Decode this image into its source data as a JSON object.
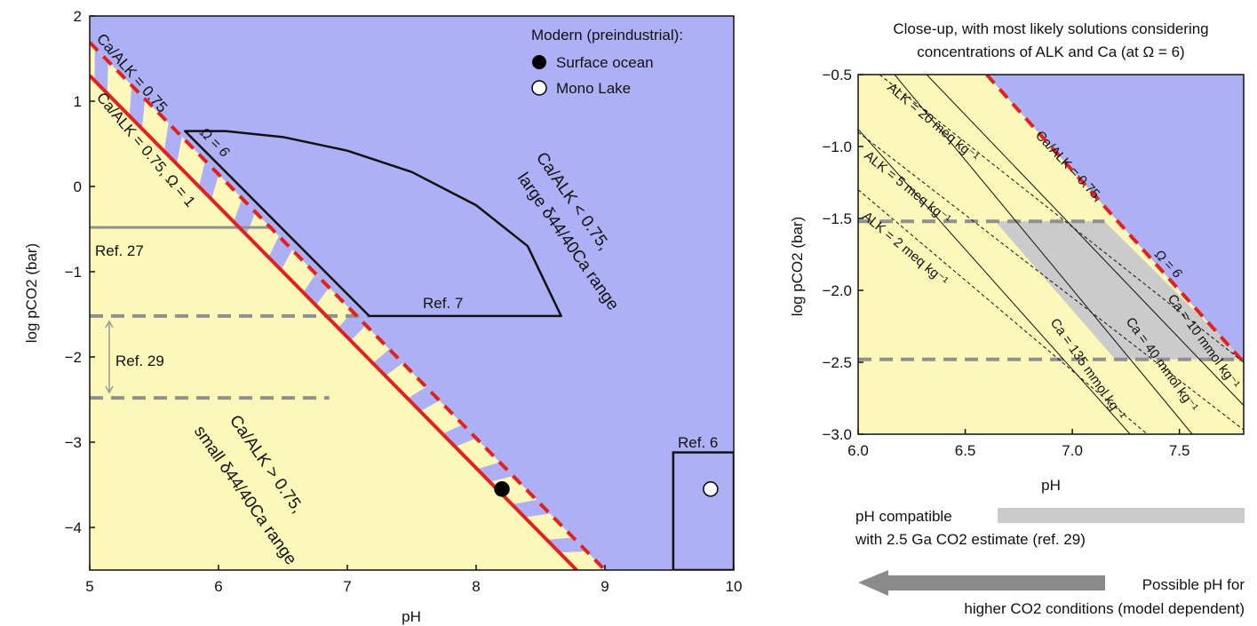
{
  "colors": {
    "supersaturated": "#aeb0f5",
    "undersaturated": "#fbf8b9",
    "omega_line": "#e4201f",
    "gray_band": "#cbcbcb",
    "dashed_gray": "#909090",
    "axis": "#111111"
  },
  "chart_data": [
    {
      "type": "area",
      "xlabel": "pH",
      "ylabel": "log pCO2 (bar)",
      "xlim": [
        5,
        10
      ],
      "ylim": [
        -4.5,
        2
      ],
      "xticks": [
        "5",
        "6",
        "7",
        "8",
        "9",
        "10"
      ],
      "yticks": [
        "2",
        "1",
        "0",
        "−1",
        "−2",
        "−3",
        "−4"
      ],
      "series": [
        {
          "name": "Ca/ALK = 0.75",
          "style": "dashed-red",
          "x": [
            5.0,
            9.0
          ],
          "y": [
            1.69,
            -4.5
          ]
        },
        {
          "name": "Ca/ALK = 0.75, Ω = 1",
          "style": "solid-red",
          "x": [
            5.0,
            8.78
          ],
          "y": [
            1.3,
            -4.5
          ]
        }
      ],
      "regions": [
        {
          "name": "Ref. 7",
          "polygon": [
            [
              5.74,
              0.65
            ],
            [
              6.05,
              0.65
            ],
            [
              6.5,
              0.58
            ],
            [
              7.0,
              0.42
            ],
            [
              7.5,
              0.17
            ],
            [
              8.0,
              -0.22
            ],
            [
              8.4,
              -0.7
            ],
            [
              8.66,
              -1.52
            ],
            [
              7.17,
              -1.52
            ]
          ]
        },
        {
          "name": "Ref. 6",
          "x": [
            9.53,
            10.0
          ],
          "y": [
            -4.5,
            -3.12
          ],
          "point": [
            9.82,
            -3.55
          ]
        }
      ],
      "ref_lines": [
        {
          "name": "Ref. 27",
          "y": -0.48,
          "x_end": 6.42,
          "style": "solid-gray"
        },
        {
          "name": "Ref. 29 upper",
          "y": -1.52,
          "x_end": 7.17,
          "style": "dashed-gray"
        },
        {
          "name": "Ref. 29 lower",
          "y": -2.48,
          "x_end": 6.86,
          "style": "dashed-gray"
        }
      ],
      "points": [
        {
          "name": "Surface ocean",
          "x": 8.2,
          "y": -3.55,
          "fill": "black"
        },
        {
          "name": "Mono Lake",
          "x": 9.82,
          "y": -3.55,
          "fill": "white"
        }
      ],
      "legend_title": "Modern (preindustrial):",
      "annotations": {
        "ca_alk_075": "Ca/ALK = 0.75",
        "ca_alk_075_omega1": "Ca/ALK = 0.75, Ω = 1",
        "omega6": "Ω = 6",
        "ref27": "Ref. 27",
        "ref29": "Ref. 29",
        "ref7": "Ref. 7",
        "ref6": "Ref. 6",
        "upper_line1": "Ca/ALK < 0.75,",
        "upper_line2": "large δ44/40Ca range",
        "lower_line1": "Ca/ALK > 0.75,",
        "lower_line2": "small δ44/40Ca range"
      }
    },
    {
      "type": "line",
      "title_line1": "Close-up, with most likely solutions considering",
      "title_line2": "concentrations of ALK and Ca (at Ω = 6)",
      "xlabel": "pH",
      "ylabel": "log pCO2 (bar)",
      "xlim": [
        6.0,
        7.8
      ],
      "ylim": [
        -3.0,
        -0.5
      ],
      "xticks": [
        "6.0",
        "6.5",
        "7.0",
        "7.5"
      ],
      "yticks": [
        "−0.5",
        "−1.0",
        "−1.5",
        "−2.0",
        "−2.5",
        "−3.0"
      ],
      "series": [
        {
          "name": "Ca/ALK = 0.75, Ω = 6",
          "style": "dashed-red",
          "x": [
            6.6,
            7.8
          ],
          "y": [
            -0.5,
            -2.5
          ]
        },
        {
          "name": "ALK = 20 meq kg⁻¹",
          "style": "dashed-black",
          "x": [
            6.1,
            7.8
          ],
          "y": [
            -0.5,
            -2.5
          ]
        },
        {
          "name": "ALK = 5 meq kg⁻¹",
          "style": "dashed-black",
          "x": [
            6.0,
            7.8
          ],
          "y": [
            -0.9,
            -2.97
          ]
        },
        {
          "name": "ALK = 2 meq kg⁻¹",
          "style": "dashed-black",
          "x": [
            6.0,
            7.35
          ],
          "y": [
            -1.3,
            -3.0
          ]
        },
        {
          "name": "Ca = 10 mmol kg⁻¹",
          "style": "solid-black",
          "x": [
            6.32,
            7.8
          ],
          "y": [
            -0.5,
            -2.8
          ]
        },
        {
          "name": "Ca = 40 mmol kg⁻¹",
          "style": "solid-black",
          "x": [
            6.17,
            7.56
          ],
          "y": [
            -0.5,
            -3.0
          ]
        },
        {
          "name": "Ca = 135 mmol kg⁻¹",
          "style": "solid-black",
          "x": [
            6.0,
            7.27
          ],
          "y": [
            -0.88,
            -3.0
          ]
        }
      ],
      "shaded_region": {
        "polygon": [
          [
            6.64,
            -1.52
          ],
          [
            7.15,
            -1.52
          ],
          [
            7.8,
            -2.48
          ],
          [
            7.2,
            -2.48
          ]
        ]
      },
      "ref_lines": [
        {
          "y": -1.52,
          "x_end": 7.15,
          "style": "dashed-gray"
        },
        {
          "y": -2.48,
          "x_end": 7.8,
          "style": "dashed-gray"
        }
      ],
      "annotations": {
        "alk20": "ALK = 20 meq kg⁻¹",
        "alk5": "ALK = 5 meq kg⁻¹",
        "alk2": "ALK = 2 meq kg⁻¹",
        "ca_alk": "Ca/ALK = 0.75,",
        "omega6": "Ω = 6",
        "ca10": "Ca = 10 mmol kg⁻¹",
        "ca40": "Ca = 40 mmol kg⁻¹",
        "ca135": "Ca = 135 mmol kg⁻¹"
      },
      "bars": {
        "compat_line1": "pH compatible",
        "compat_line2": "with 2.5 Ga CO2 estimate (ref. 29)",
        "higher_line1": "Possible pH for",
        "higher_line2": "higher CO2 conditions (model dependent)"
      }
    }
  ]
}
